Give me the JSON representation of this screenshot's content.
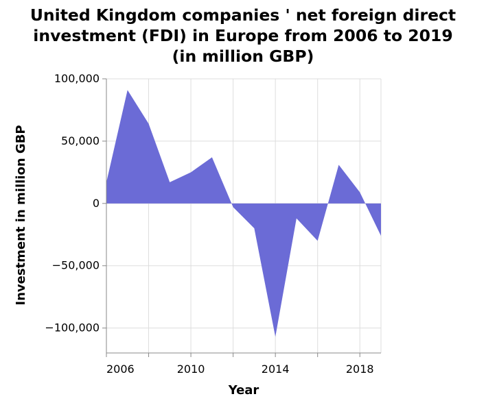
{
  "chart_data": {
    "type": "area",
    "title": [
      "United Kingdom companies ' net foreign direct",
      "investment (FDI) in Europe from 2006 to 2019",
      "(in million GBP)"
    ],
    "xlabel": "Year",
    "ylabel": "Investment in million GBP",
    "x": [
      2006,
      2007,
      2008,
      2009,
      2010,
      2011,
      2012,
      2013,
      2014,
      2015,
      2016,
      2017,
      2018,
      2019
    ],
    "values": [
      17000,
      91000,
      64000,
      17000,
      25000,
      37000,
      -3000,
      -20000,
      -107000,
      -12000,
      -30000,
      31000,
      9000,
      -26000
    ],
    "xlim": [
      2006,
      2019
    ],
    "ylim": [
      -120000,
      100000
    ],
    "y_ticks": [
      100000,
      50000,
      0,
      -50000,
      -100000
    ],
    "y_tick_labels": [
      "100,000",
      "50,000",
      "0",
      "−50,000",
      "−100,000"
    ],
    "x_ticks": [
      2006,
      2008,
      2010,
      2012,
      2014,
      2016,
      2018
    ],
    "x_tick_labels": [
      "2006",
      "",
      "2010",
      "",
      "2014",
      "",
      "2018"
    ],
    "fill_color": "#6b6bd6",
    "grid": true
  }
}
